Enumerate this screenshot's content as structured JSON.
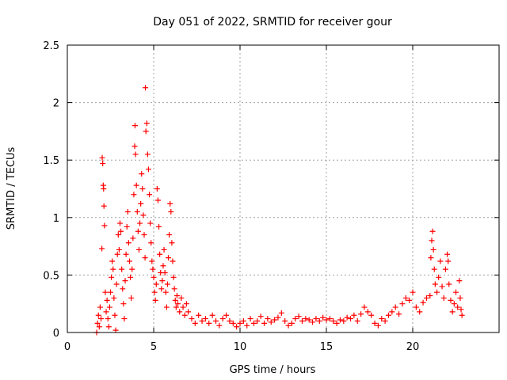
{
  "chart_data": {
    "type": "scatter",
    "title": "Day 051 of 2022, SRMTID for receiver gour",
    "xlabel": "GPS time / hours",
    "ylabel": "SRMTID / TECUs",
    "xlim": [
      0,
      25
    ],
    "ylim": [
      0,
      2.5
    ],
    "xticks": [
      0,
      5,
      10,
      15,
      20
    ],
    "yticks": [
      0,
      0.5,
      1,
      1.5,
      2,
      2.5
    ],
    "xtick_labels": [
      "0",
      "5",
      "10",
      "15",
      "20"
    ],
    "ytick_labels": [
      "0",
      "0.5",
      "1",
      "1.5",
      "2",
      "2.5"
    ],
    "grid": true,
    "marker": "+",
    "series": [
      {
        "name": "SRMTID",
        "color": "#ff0000",
        "points": [
          [
            1.7,
            0.0
          ],
          [
            1.75,
            0.08
          ],
          [
            1.8,
            0.15
          ],
          [
            1.85,
            0.05
          ],
          [
            1.9,
            0.22
          ],
          [
            1.95,
            0.12
          ],
          [
            2.0,
            0.73
          ],
          [
            2.02,
            1.52
          ],
          [
            2.05,
            1.47
          ],
          [
            2.08,
            1.28
          ],
          [
            2.1,
            1.25
          ],
          [
            2.12,
            1.1
          ],
          [
            2.15,
            0.93
          ],
          [
            2.2,
            0.35
          ],
          [
            2.25,
            0.18
          ],
          [
            2.3,
            0.28
          ],
          [
            2.35,
            0.12
          ],
          [
            2.4,
            0.05
          ],
          [
            2.45,
            0.22
          ],
          [
            2.5,
            0.35
          ],
          [
            2.55,
            0.48
          ],
          [
            2.6,
            0.62
          ],
          [
            2.65,
            0.55
          ],
          [
            2.7,
            0.3
          ],
          [
            2.75,
            0.15
          ],
          [
            2.8,
            0.02
          ],
          [
            2.85,
            0.42
          ],
          [
            2.9,
            0.68
          ],
          [
            2.95,
            0.85
          ],
          [
            3.0,
            0.72
          ],
          [
            3.05,
            0.95
          ],
          [
            3.1,
            0.88
          ],
          [
            3.15,
            0.55
          ],
          [
            3.2,
            0.38
          ],
          [
            3.25,
            0.25
          ],
          [
            3.3,
            0.12
          ],
          [
            3.35,
            0.45
          ],
          [
            3.4,
            0.68
          ],
          [
            3.45,
            0.92
          ],
          [
            3.5,
            1.05
          ],
          [
            3.55,
            0.78
          ],
          [
            3.6,
            0.62
          ],
          [
            3.65,
            0.48
          ],
          [
            3.7,
            0.3
          ],
          [
            3.75,
            0.55
          ],
          [
            3.8,
            0.82
          ],
          [
            3.85,
            1.2
          ],
          [
            3.9,
            1.62
          ],
          [
            3.92,
            1.8
          ],
          [
            3.95,
            1.55
          ],
          [
            4.0,
            1.28
          ],
          [
            4.05,
            1.05
          ],
          [
            4.1,
            0.88
          ],
          [
            4.15,
            0.72
          ],
          [
            4.2,
            0.95
          ],
          [
            4.25,
            1.12
          ],
          [
            4.3,
            1.38
          ],
          [
            4.35,
            1.25
          ],
          [
            4.4,
            1.02
          ],
          [
            4.45,
            0.85
          ],
          [
            4.5,
            0.65
          ],
          [
            4.52,
            2.13
          ],
          [
            4.55,
            1.75
          ],
          [
            4.6,
            1.82
          ],
          [
            4.65,
            1.55
          ],
          [
            4.7,
            1.42
          ],
          [
            4.75,
            1.2
          ],
          [
            4.8,
            0.95
          ],
          [
            4.85,
            0.78
          ],
          [
            4.9,
            0.62
          ],
          [
            4.95,
            0.55
          ],
          [
            5.0,
            0.48
          ],
          [
            5.05,
            0.35
          ],
          [
            5.1,
            0.28
          ],
          [
            5.15,
            0.42
          ],
          [
            5.2,
            1.25
          ],
          [
            5.25,
            1.15
          ],
          [
            5.3,
            0.92
          ],
          [
            5.35,
            0.68
          ],
          [
            5.4,
            0.52
          ],
          [
            5.45,
            0.38
          ],
          [
            5.5,
            0.45
          ],
          [
            5.55,
            0.58
          ],
          [
            5.6,
            0.72
          ],
          [
            5.65,
            0.52
          ],
          [
            5.7,
            0.35
          ],
          [
            5.75,
            0.22
          ],
          [
            5.8,
            0.42
          ],
          [
            5.85,
            0.65
          ],
          [
            5.9,
            0.85
          ],
          [
            5.95,
            1.12
          ],
          [
            6.0,
            1.05
          ],
          [
            6.05,
            0.78
          ],
          [
            6.1,
            0.62
          ],
          [
            6.15,
            0.48
          ],
          [
            6.2,
            0.38
          ],
          [
            6.25,
            0.28
          ],
          [
            6.3,
            0.22
          ],
          [
            6.35,
            0.32
          ],
          [
            6.4,
            0.25
          ],
          [
            6.5,
            0.18
          ],
          [
            6.6,
            0.3
          ],
          [
            6.7,
            0.22
          ],
          [
            6.8,
            0.15
          ],
          [
            6.9,
            0.25
          ],
          [
            7.0,
            0.18
          ],
          [
            7.2,
            0.12
          ],
          [
            7.4,
            0.08
          ],
          [
            7.6,
            0.15
          ],
          [
            7.8,
            0.1
          ],
          [
            8.0,
            0.12
          ],
          [
            8.2,
            0.08
          ],
          [
            8.4,
            0.15
          ],
          [
            8.6,
            0.1
          ],
          [
            8.8,
            0.06
          ],
          [
            9.0,
            0.12
          ],
          [
            9.2,
            0.15
          ],
          [
            9.4,
            0.1
          ],
          [
            9.6,
            0.08
          ],
          [
            9.8,
            0.05
          ],
          [
            10.0,
            0.08
          ],
          [
            10.2,
            0.1
          ],
          [
            10.4,
            0.06
          ],
          [
            10.6,
            0.12
          ],
          [
            10.8,
            0.08
          ],
          [
            11.0,
            0.1
          ],
          [
            11.2,
            0.14
          ],
          [
            11.4,
            0.08
          ],
          [
            11.6,
            0.12
          ],
          [
            11.8,
            0.09
          ],
          [
            12.0,
            0.11
          ],
          [
            12.2,
            0.13
          ],
          [
            12.4,
            0.17
          ],
          [
            12.6,
            0.1
          ],
          [
            12.8,
            0.06
          ],
          [
            13.0,
            0.08
          ],
          [
            13.2,
            0.12
          ],
          [
            13.4,
            0.14
          ],
          [
            13.6,
            0.1
          ],
          [
            13.8,
            0.12
          ],
          [
            14.0,
            0.11
          ],
          [
            14.2,
            0.09
          ],
          [
            14.4,
            0.12
          ],
          [
            14.6,
            0.1
          ],
          [
            14.8,
            0.13
          ],
          [
            15.0,
            0.11
          ],
          [
            15.2,
            0.12
          ],
          [
            15.4,
            0.1
          ],
          [
            15.6,
            0.08
          ],
          [
            15.8,
            0.11
          ],
          [
            16.0,
            0.1
          ],
          [
            16.2,
            0.13
          ],
          [
            16.4,
            0.12
          ],
          [
            16.6,
            0.15
          ],
          [
            16.8,
            0.1
          ],
          [
            17.0,
            0.16
          ],
          [
            17.2,
            0.22
          ],
          [
            17.4,
            0.18
          ],
          [
            17.6,
            0.15
          ],
          [
            17.8,
            0.08
          ],
          [
            18.0,
            0.06
          ],
          [
            18.2,
            0.12
          ],
          [
            18.4,
            0.1
          ],
          [
            18.6,
            0.15
          ],
          [
            18.8,
            0.18
          ],
          [
            19.0,
            0.22
          ],
          [
            19.2,
            0.16
          ],
          [
            19.4,
            0.25
          ],
          [
            19.6,
            0.3
          ],
          [
            19.8,
            0.28
          ],
          [
            20.0,
            0.35
          ],
          [
            20.2,
            0.22
          ],
          [
            20.4,
            0.18
          ],
          [
            20.6,
            0.26
          ],
          [
            20.8,
            0.3
          ],
          [
            21.0,
            0.32
          ],
          [
            21.05,
            0.65
          ],
          [
            21.1,
            0.8
          ],
          [
            21.15,
            0.88
          ],
          [
            21.2,
            0.72
          ],
          [
            21.25,
            0.55
          ],
          [
            21.3,
            0.42
          ],
          [
            21.4,
            0.35
          ],
          [
            21.5,
            0.48
          ],
          [
            21.6,
            0.62
          ],
          [
            21.7,
            0.4
          ],
          [
            21.8,
            0.3
          ],
          [
            21.9,
            0.55
          ],
          [
            22.0,
            0.68
          ],
          [
            22.05,
            0.62
          ],
          [
            22.1,
            0.42
          ],
          [
            22.2,
            0.28
          ],
          [
            22.3,
            0.18
          ],
          [
            22.4,
            0.25
          ],
          [
            22.5,
            0.35
          ],
          [
            22.6,
            0.22
          ],
          [
            22.7,
            0.45
          ],
          [
            22.75,
            0.3
          ],
          [
            22.8,
            0.2
          ],
          [
            22.85,
            0.15
          ]
        ]
      }
    ]
  }
}
